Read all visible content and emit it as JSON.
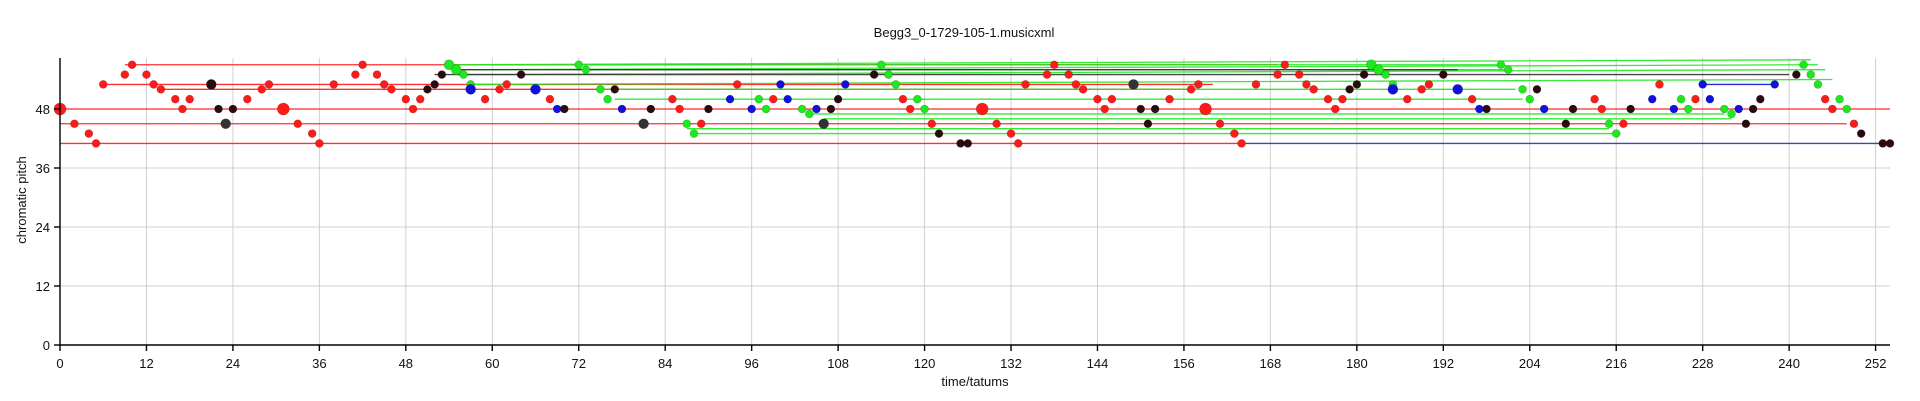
{
  "chart_data": {
    "type": "scatter",
    "title": "Begg3_0-1729-105-1.musicxml",
    "xlabel": "time/tatums",
    "ylabel": "chromatic pitch",
    "xlim": [
      0,
      254
    ],
    "ylim": [
      0,
      58
    ],
    "xticks": [
      0,
      12,
      24,
      36,
      48,
      60,
      72,
      84,
      96,
      108,
      120,
      132,
      144,
      156,
      168,
      180,
      192,
      204,
      216,
      228,
      240,
      252
    ],
    "yticks": [
      0,
      12,
      24,
      36,
      48
    ],
    "grid": true,
    "colors": {
      "red": "#ff1a1a",
      "green": "#1ee81e",
      "blue": "#1010e0",
      "dark": "#2a0a10",
      "darkgray": "#333333",
      "navy": "#3030a0"
    },
    "lines": [
      {
        "x": [
          0,
          254
        ],
        "y": [
          48,
          48
        ],
        "color": "red"
      },
      {
        "x": [
          0,
          248
        ],
        "y": [
          45,
          45
        ],
        "color": "red"
      },
      {
        "x": [
          0,
          164
        ],
        "y": [
          41,
          41
        ],
        "color": "red"
      },
      {
        "x": [
          164,
          254
        ],
        "y": [
          41,
          41
        ],
        "color": "navy"
      },
      {
        "x": [
          9,
          169
        ],
        "y": [
          57,
          57
        ],
        "color": "red"
      },
      {
        "x": [
          6,
          160
        ],
        "y": [
          53,
          53
        ],
        "color": "red"
      },
      {
        "x": [
          14,
          158
        ],
        "y": [
          52,
          52
        ],
        "color": "red"
      },
      {
        "x": [
          54,
          243
        ],
        "y": [
          57,
          58
        ],
        "color": "green"
      },
      {
        "x": [
          55,
          244
        ],
        "y": [
          56,
          57
        ],
        "color": "green"
      },
      {
        "x": [
          56,
          245
        ],
        "y": [
          55,
          56
        ],
        "color": "green"
      },
      {
        "x": [
          57,
          246
        ],
        "y": [
          53,
          54
        ],
        "color": "green"
      },
      {
        "x": [
          72,
          200
        ],
        "y": [
          57,
          57
        ],
        "color": "green"
      },
      {
        "x": [
          73,
          201
        ],
        "y": [
          56,
          56
        ],
        "color": "green"
      },
      {
        "x": [
          75,
          202
        ],
        "y": [
          52,
          52
        ],
        "color": "green"
      },
      {
        "x": [
          77,
          203
        ],
        "y": [
          50,
          50
        ],
        "color": "green"
      },
      {
        "x": [
          87,
          215
        ],
        "y": [
          44,
          44
        ],
        "color": "green"
      },
      {
        "x": [
          88,
          216
        ],
        "y": [
          43,
          43
        ],
        "color": "green"
      },
      {
        "x": [
          104,
          231
        ],
        "y": [
          47,
          47
        ],
        "color": "green"
      },
      {
        "x": [
          106,
          232
        ],
        "y": [
          46,
          46
        ],
        "color": "green"
      },
      {
        "x": [
          228,
          238
        ],
        "y": [
          53,
          53
        ],
        "color": "blue"
      },
      {
        "x": [
          52,
          240
        ],
        "y": [
          55,
          55
        ],
        "color": "darkgray"
      },
      {
        "x": [
          55,
          194
        ],
        "y": [
          56,
          56
        ],
        "color": "darkgray"
      }
    ],
    "points": [
      {
        "x": 0,
        "y": 48,
        "c": "red",
        "s": 6
      },
      {
        "x": 2,
        "y": 45,
        "c": "red",
        "s": 4
      },
      {
        "x": 4,
        "y": 43,
        "c": "red",
        "s": 4
      },
      {
        "x": 5,
        "y": 41,
        "c": "red",
        "s": 4
      },
      {
        "x": 6,
        "y": 53,
        "c": "red",
        "s": 4
      },
      {
        "x": 9,
        "y": 55,
        "c": "red",
        "s": 4
      },
      {
        "x": 10,
        "y": 57,
        "c": "red",
        "s": 4
      },
      {
        "x": 12,
        "y": 55,
        "c": "red",
        "s": 4
      },
      {
        "x": 13,
        "y": 53,
        "c": "red",
        "s": 4
      },
      {
        "x": 14,
        "y": 52,
        "c": "red",
        "s": 4
      },
      {
        "x": 16,
        "y": 50,
        "c": "red",
        "s": 4
      },
      {
        "x": 17,
        "y": 48,
        "c": "red",
        "s": 4
      },
      {
        "x": 18,
        "y": 50,
        "c": "red",
        "s": 4
      },
      {
        "x": 21,
        "y": 53,
        "c": "dark",
        "s": 5
      },
      {
        "x": 22,
        "y": 48,
        "c": "dark",
        "s": 4
      },
      {
        "x": 23,
        "y": 45,
        "c": "darkgray",
        "s": 5
      },
      {
        "x": 24,
        "y": 48,
        "c": "dark",
        "s": 4
      },
      {
        "x": 26,
        "y": 50,
        "c": "red",
        "s": 4
      },
      {
        "x": 28,
        "y": 52,
        "c": "red",
        "s": 4
      },
      {
        "x": 29,
        "y": 53,
        "c": "red",
        "s": 4
      },
      {
        "x": 31,
        "y": 48,
        "c": "red",
        "s": 6
      },
      {
        "x": 33,
        "y": 45,
        "c": "red",
        "s": 4
      },
      {
        "x": 35,
        "y": 43,
        "c": "red",
        "s": 4
      },
      {
        "x": 36,
        "y": 41,
        "c": "red",
        "s": 4
      },
      {
        "x": 38,
        "y": 53,
        "c": "red",
        "s": 4
      },
      {
        "x": 41,
        "y": 55,
        "c": "red",
        "s": 4
      },
      {
        "x": 42,
        "y": 57,
        "c": "red",
        "s": 4
      },
      {
        "x": 44,
        "y": 55,
        "c": "red",
        "s": 4
      },
      {
        "x": 45,
        "y": 53,
        "c": "red",
        "s": 4
      },
      {
        "x": 46,
        "y": 52,
        "c": "red",
        "s": 4
      },
      {
        "x": 48,
        "y": 50,
        "c": "red",
        "s": 4
      },
      {
        "x": 49,
        "y": 48,
        "c": "red",
        "s": 4
      },
      {
        "x": 50,
        "y": 50,
        "c": "red",
        "s": 4
      },
      {
        "x": 51,
        "y": 52,
        "c": "dark",
        "s": 4
      },
      {
        "x": 52,
        "y": 53,
        "c": "dark",
        "s": 4
      },
      {
        "x": 53,
        "y": 55,
        "c": "dark",
        "s": 4
      },
      {
        "x": 54,
        "y": 57,
        "c": "green",
        "s": 5
      },
      {
        "x": 55,
        "y": 56,
        "c": "green",
        "s": 5
      },
      {
        "x": 56,
        "y": 55,
        "c": "green",
        "s": 4
      },
      {
        "x": 57,
        "y": 53,
        "c": "green",
        "s": 4
      },
      {
        "x": 57,
        "y": 52,
        "c": "blue",
        "s": 5
      },
      {
        "x": 59,
        "y": 50,
        "c": "red",
        "s": 4
      },
      {
        "x": 61,
        "y": 52,
        "c": "red",
        "s": 4
      },
      {
        "x": 62,
        "y": 53,
        "c": "red",
        "s": 4
      },
      {
        "x": 64,
        "y": 55,
        "c": "dark",
        "s": 4
      },
      {
        "x": 66,
        "y": 52,
        "c": "blue",
        "s": 5
      },
      {
        "x": 68,
        "y": 50,
        "c": "red",
        "s": 4
      },
      {
        "x": 69,
        "y": 48,
        "c": "blue",
        "s": 4
      },
      {
        "x": 70,
        "y": 48,
        "c": "dark",
        "s": 4
      },
      {
        "x": 72,
        "y": 57,
        "c": "green",
        "s": 4
      },
      {
        "x": 73,
        "y": 56,
        "c": "green",
        "s": 4
      },
      {
        "x": 75,
        "y": 52,
        "c": "green",
        "s": 4
      },
      {
        "x": 76,
        "y": 50,
        "c": "green",
        "s": 4
      },
      {
        "x": 77,
        "y": 52,
        "c": "dark",
        "s": 4
      },
      {
        "x": 78,
        "y": 48,
        "c": "blue",
        "s": 4
      },
      {
        "x": 81,
        "y": 45,
        "c": "darkgray",
        "s": 5
      },
      {
        "x": 82,
        "y": 48,
        "c": "dark",
        "s": 4
      },
      {
        "x": 85,
        "y": 50,
        "c": "red",
        "s": 4
      },
      {
        "x": 86,
        "y": 48,
        "c": "red",
        "s": 4
      },
      {
        "x": 87,
        "y": 45,
        "c": "green",
        "s": 4
      },
      {
        "x": 88,
        "y": 43,
        "c": "green",
        "s": 4
      },
      {
        "x": 89,
        "y": 45,
        "c": "red",
        "s": 4
      },
      {
        "x": 90,
        "y": 48,
        "c": "dark",
        "s": 4
      },
      {
        "x": 93,
        "y": 50,
        "c": "blue",
        "s": 4
      },
      {
        "x": 94,
        "y": 53,
        "c": "red",
        "s": 4
      },
      {
        "x": 96,
        "y": 48,
        "c": "blue",
        "s": 4
      },
      {
        "x": 97,
        "y": 50,
        "c": "green",
        "s": 4
      },
      {
        "x": 98,
        "y": 48,
        "c": "green",
        "s": 4
      },
      {
        "x": 99,
        "y": 50,
        "c": "red",
        "s": 4
      },
      {
        "x": 100,
        "y": 53,
        "c": "blue",
        "s": 4
      },
      {
        "x": 101,
        "y": 50,
        "c": "blue",
        "s": 4
      },
      {
        "x": 103,
        "y": 48,
        "c": "green",
        "s": 4
      },
      {
        "x": 104,
        "y": 47,
        "c": "green",
        "s": 4
      },
      {
        "x": 105,
        "y": 48,
        "c": "blue",
        "s": 4
      },
      {
        "x": 106,
        "y": 45,
        "c": "darkgray",
        "s": 5
      },
      {
        "x": 107,
        "y": 48,
        "c": "dark",
        "s": 4
      },
      {
        "x": 108,
        "y": 50,
        "c": "dark",
        "s": 4
      },
      {
        "x": 109,
        "y": 53,
        "c": "blue",
        "s": 4
      },
      {
        "x": 113,
        "y": 55,
        "c": "dark",
        "s": 4
      },
      {
        "x": 114,
        "y": 57,
        "c": "green",
        "s": 4
      },
      {
        "x": 115,
        "y": 55,
        "c": "green",
        "s": 4
      },
      {
        "x": 116,
        "y": 53,
        "c": "green",
        "s": 4
      },
      {
        "x": 117,
        "y": 50,
        "c": "red",
        "s": 4
      },
      {
        "x": 118,
        "y": 48,
        "c": "red",
        "s": 4
      },
      {
        "x": 119,
        "y": 50,
        "c": "green",
        "s": 4
      },
      {
        "x": 120,
        "y": 48,
        "c": "green",
        "s": 4
      },
      {
        "x": 121,
        "y": 45,
        "c": "red",
        "s": 4
      },
      {
        "x": 122,
        "y": 43,
        "c": "dark",
        "s": 4
      },
      {
        "x": 125,
        "y": 41,
        "c": "dark",
        "s": 4
      },
      {
        "x": 126,
        "y": 41,
        "c": "dark",
        "s": 4
      },
      {
        "x": 128,
        "y": 48,
        "c": "red",
        "s": 6
      },
      {
        "x": 130,
        "y": 45,
        "c": "red",
        "s": 4
      },
      {
        "x": 132,
        "y": 43,
        "c": "red",
        "s": 4
      },
      {
        "x": 133,
        "y": 41,
        "c": "red",
        "s": 4
      },
      {
        "x": 134,
        "y": 53,
        "c": "red",
        "s": 4
      },
      {
        "x": 137,
        "y": 55,
        "c": "red",
        "s": 4
      },
      {
        "x": 138,
        "y": 57,
        "c": "red",
        "s": 4
      },
      {
        "x": 140,
        "y": 55,
        "c": "red",
        "s": 4
      },
      {
        "x": 141,
        "y": 53,
        "c": "red",
        "s": 4
      },
      {
        "x": 142,
        "y": 52,
        "c": "red",
        "s": 4
      },
      {
        "x": 144,
        "y": 50,
        "c": "red",
        "s": 4
      },
      {
        "x": 145,
        "y": 48,
        "c": "red",
        "s": 4
      },
      {
        "x": 146,
        "y": 50,
        "c": "red",
        "s": 4
      },
      {
        "x": 149,
        "y": 53,
        "c": "darkgray",
        "s": 5
      },
      {
        "x": 150,
        "y": 48,
        "c": "dark",
        "s": 4
      },
      {
        "x": 151,
        "y": 45,
        "c": "dark",
        "s": 4
      },
      {
        "x": 152,
        "y": 48,
        "c": "dark",
        "s": 4
      },
      {
        "x": 154,
        "y": 50,
        "c": "red",
        "s": 4
      },
      {
        "x": 157,
        "y": 52,
        "c": "red",
        "s": 4
      },
      {
        "x": 158,
        "y": 53,
        "c": "red",
        "s": 4
      },
      {
        "x": 159,
        "y": 48,
        "c": "red",
        "s": 6
      },
      {
        "x": 161,
        "y": 45,
        "c": "red",
        "s": 4
      },
      {
        "x": 163,
        "y": 43,
        "c": "red",
        "s": 4
      },
      {
        "x": 164,
        "y": 41,
        "c": "red",
        "s": 4
      },
      {
        "x": 166,
        "y": 53,
        "c": "red",
        "s": 4
      },
      {
        "x": 169,
        "y": 55,
        "c": "red",
        "s": 4
      },
      {
        "x": 170,
        "y": 57,
        "c": "red",
        "s": 4
      },
      {
        "x": 172,
        "y": 55,
        "c": "red",
        "s": 4
      },
      {
        "x": 173,
        "y": 53,
        "c": "red",
        "s": 4
      },
      {
        "x": 174,
        "y": 52,
        "c": "red",
        "s": 4
      },
      {
        "x": 176,
        "y": 50,
        "c": "red",
        "s": 4
      },
      {
        "x": 177,
        "y": 48,
        "c": "red",
        "s": 4
      },
      {
        "x": 178,
        "y": 50,
        "c": "red",
        "s": 4
      },
      {
        "x": 179,
        "y": 52,
        "c": "dark",
        "s": 4
      },
      {
        "x": 180,
        "y": 53,
        "c": "dark",
        "s": 4
      },
      {
        "x": 181,
        "y": 55,
        "c": "dark",
        "s": 4
      },
      {
        "x": 182,
        "y": 57,
        "c": "green",
        "s": 5
      },
      {
        "x": 183,
        "y": 56,
        "c": "green",
        "s": 5
      },
      {
        "x": 184,
        "y": 55,
        "c": "green",
        "s": 4
      },
      {
        "x": 185,
        "y": 53,
        "c": "green",
        "s": 4
      },
      {
        "x": 185,
        "y": 52,
        "c": "blue",
        "s": 5
      },
      {
        "x": 187,
        "y": 50,
        "c": "red",
        "s": 4
      },
      {
        "x": 189,
        "y": 52,
        "c": "red",
        "s": 4
      },
      {
        "x": 190,
        "y": 53,
        "c": "red",
        "s": 4
      },
      {
        "x": 192,
        "y": 55,
        "c": "dark",
        "s": 4
      },
      {
        "x": 194,
        "y": 52,
        "c": "blue",
        "s": 5
      },
      {
        "x": 196,
        "y": 50,
        "c": "red",
        "s": 4
      },
      {
        "x": 197,
        "y": 48,
        "c": "blue",
        "s": 4
      },
      {
        "x": 198,
        "y": 48,
        "c": "dark",
        "s": 4
      },
      {
        "x": 200,
        "y": 57,
        "c": "green",
        "s": 4
      },
      {
        "x": 201,
        "y": 56,
        "c": "green",
        "s": 4
      },
      {
        "x": 203,
        "y": 52,
        "c": "green",
        "s": 4
      },
      {
        "x": 204,
        "y": 50,
        "c": "green",
        "s": 4
      },
      {
        "x": 205,
        "y": 52,
        "c": "dark",
        "s": 4
      },
      {
        "x": 206,
        "y": 48,
        "c": "blue",
        "s": 4
      },
      {
        "x": 209,
        "y": 45,
        "c": "dark",
        "s": 4
      },
      {
        "x": 210,
        "y": 48,
        "c": "dark",
        "s": 4
      },
      {
        "x": 213,
        "y": 50,
        "c": "red",
        "s": 4
      },
      {
        "x": 214,
        "y": 48,
        "c": "red",
        "s": 4
      },
      {
        "x": 215,
        "y": 45,
        "c": "green",
        "s": 4
      },
      {
        "x": 216,
        "y": 43,
        "c": "green",
        "s": 4
      },
      {
        "x": 217,
        "y": 45,
        "c": "red",
        "s": 4
      },
      {
        "x": 218,
        "y": 48,
        "c": "dark",
        "s": 4
      },
      {
        "x": 221,
        "y": 50,
        "c": "blue",
        "s": 4
      },
      {
        "x": 222,
        "y": 53,
        "c": "red",
        "s": 4
      },
      {
        "x": 224,
        "y": 48,
        "c": "blue",
        "s": 4
      },
      {
        "x": 225,
        "y": 50,
        "c": "green",
        "s": 4
      },
      {
        "x": 226,
        "y": 48,
        "c": "green",
        "s": 4
      },
      {
        "x": 227,
        "y": 50,
        "c": "red",
        "s": 4
      },
      {
        "x": 228,
        "y": 53,
        "c": "blue",
        "s": 4
      },
      {
        "x": 229,
        "y": 50,
        "c": "blue",
        "s": 4
      },
      {
        "x": 231,
        "y": 48,
        "c": "green",
        "s": 4
      },
      {
        "x": 232,
        "y": 47,
        "c": "green",
        "s": 4
      },
      {
        "x": 233,
        "y": 48,
        "c": "blue",
        "s": 4
      },
      {
        "x": 234,
        "y": 45,
        "c": "dark",
        "s": 4
      },
      {
        "x": 235,
        "y": 48,
        "c": "dark",
        "s": 4
      },
      {
        "x": 236,
        "y": 50,
        "c": "dark",
        "s": 4
      },
      {
        "x": 238,
        "y": 53,
        "c": "blue",
        "s": 4
      },
      {
        "x": 241,
        "y": 55,
        "c": "dark",
        "s": 4
      },
      {
        "x": 242,
        "y": 57,
        "c": "green",
        "s": 4
      },
      {
        "x": 243,
        "y": 55,
        "c": "green",
        "s": 4
      },
      {
        "x": 244,
        "y": 53,
        "c": "green",
        "s": 4
      },
      {
        "x": 245,
        "y": 50,
        "c": "red",
        "s": 4
      },
      {
        "x": 246,
        "y": 48,
        "c": "red",
        "s": 4
      },
      {
        "x": 247,
        "y": 50,
        "c": "green",
        "s": 4
      },
      {
        "x": 248,
        "y": 48,
        "c": "green",
        "s": 4
      },
      {
        "x": 249,
        "y": 45,
        "c": "red",
        "s": 4
      },
      {
        "x": 250,
        "y": 43,
        "c": "dark",
        "s": 4
      },
      {
        "x": 253,
        "y": 41,
        "c": "dark",
        "s": 4
      },
      {
        "x": 254,
        "y": 41,
        "c": "dark",
        "s": 4
      }
    ]
  }
}
